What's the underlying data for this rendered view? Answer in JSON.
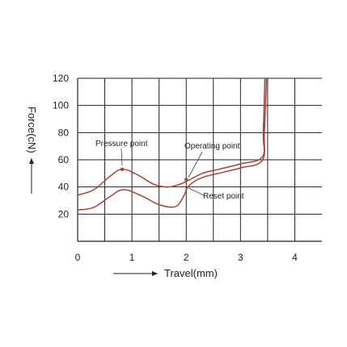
{
  "chart_data": {
    "type": "line",
    "title": "",
    "xlabel": "Travel(mm)",
    "ylabel": "Force(cN)",
    "xlim": [
      0,
      4.5
    ],
    "ylim": [
      0,
      120
    ],
    "xticks": [
      0,
      1,
      2,
      3,
      4
    ],
    "yticks": [
      20,
      40,
      60,
      80,
      100,
      120
    ],
    "grid": true,
    "series": [
      {
        "color": "#a0453a",
        "points": [
          [
            0,
            34
          ],
          [
            0.3,
            38
          ],
          [
            0.6,
            48
          ],
          [
            0.82,
            53
          ],
          [
            1.1,
            49
          ],
          [
            1.4,
            42
          ],
          [
            1.65,
            40
          ],
          [
            1.85,
            41.5
          ],
          [
            2.0,
            44
          ],
          [
            2.3,
            50
          ],
          [
            2.6,
            53
          ],
          [
            3.0,
            57
          ],
          [
            3.4,
            62
          ],
          [
            3.42,
            80
          ],
          [
            3.45,
            120
          ]
        ]
      },
      {
        "color": "#a0453a",
        "points": [
          [
            0,
            23
          ],
          [
            0.3,
            25
          ],
          [
            0.6,
            33
          ],
          [
            0.85,
            38
          ],
          [
            1.2,
            33
          ],
          [
            1.5,
            27
          ],
          [
            1.8,
            25.5
          ],
          [
            1.95,
            33
          ],
          [
            2.05,
            41
          ],
          [
            2.3,
            47
          ],
          [
            2.7,
            51
          ],
          [
            3.0,
            54
          ],
          [
            3.4,
            59.5
          ],
          [
            3.44,
            80
          ],
          [
            3.48,
            120
          ]
        ]
      }
    ],
    "annotations": [
      {
        "label": "Pressure point",
        "point": [
          0.82,
          53
        ]
      },
      {
        "label": "Operating point",
        "point": [
          2.0,
          45.5
        ]
      },
      {
        "label": "Reset point",
        "point": [
          2.0,
          38.5
        ]
      }
    ]
  }
}
